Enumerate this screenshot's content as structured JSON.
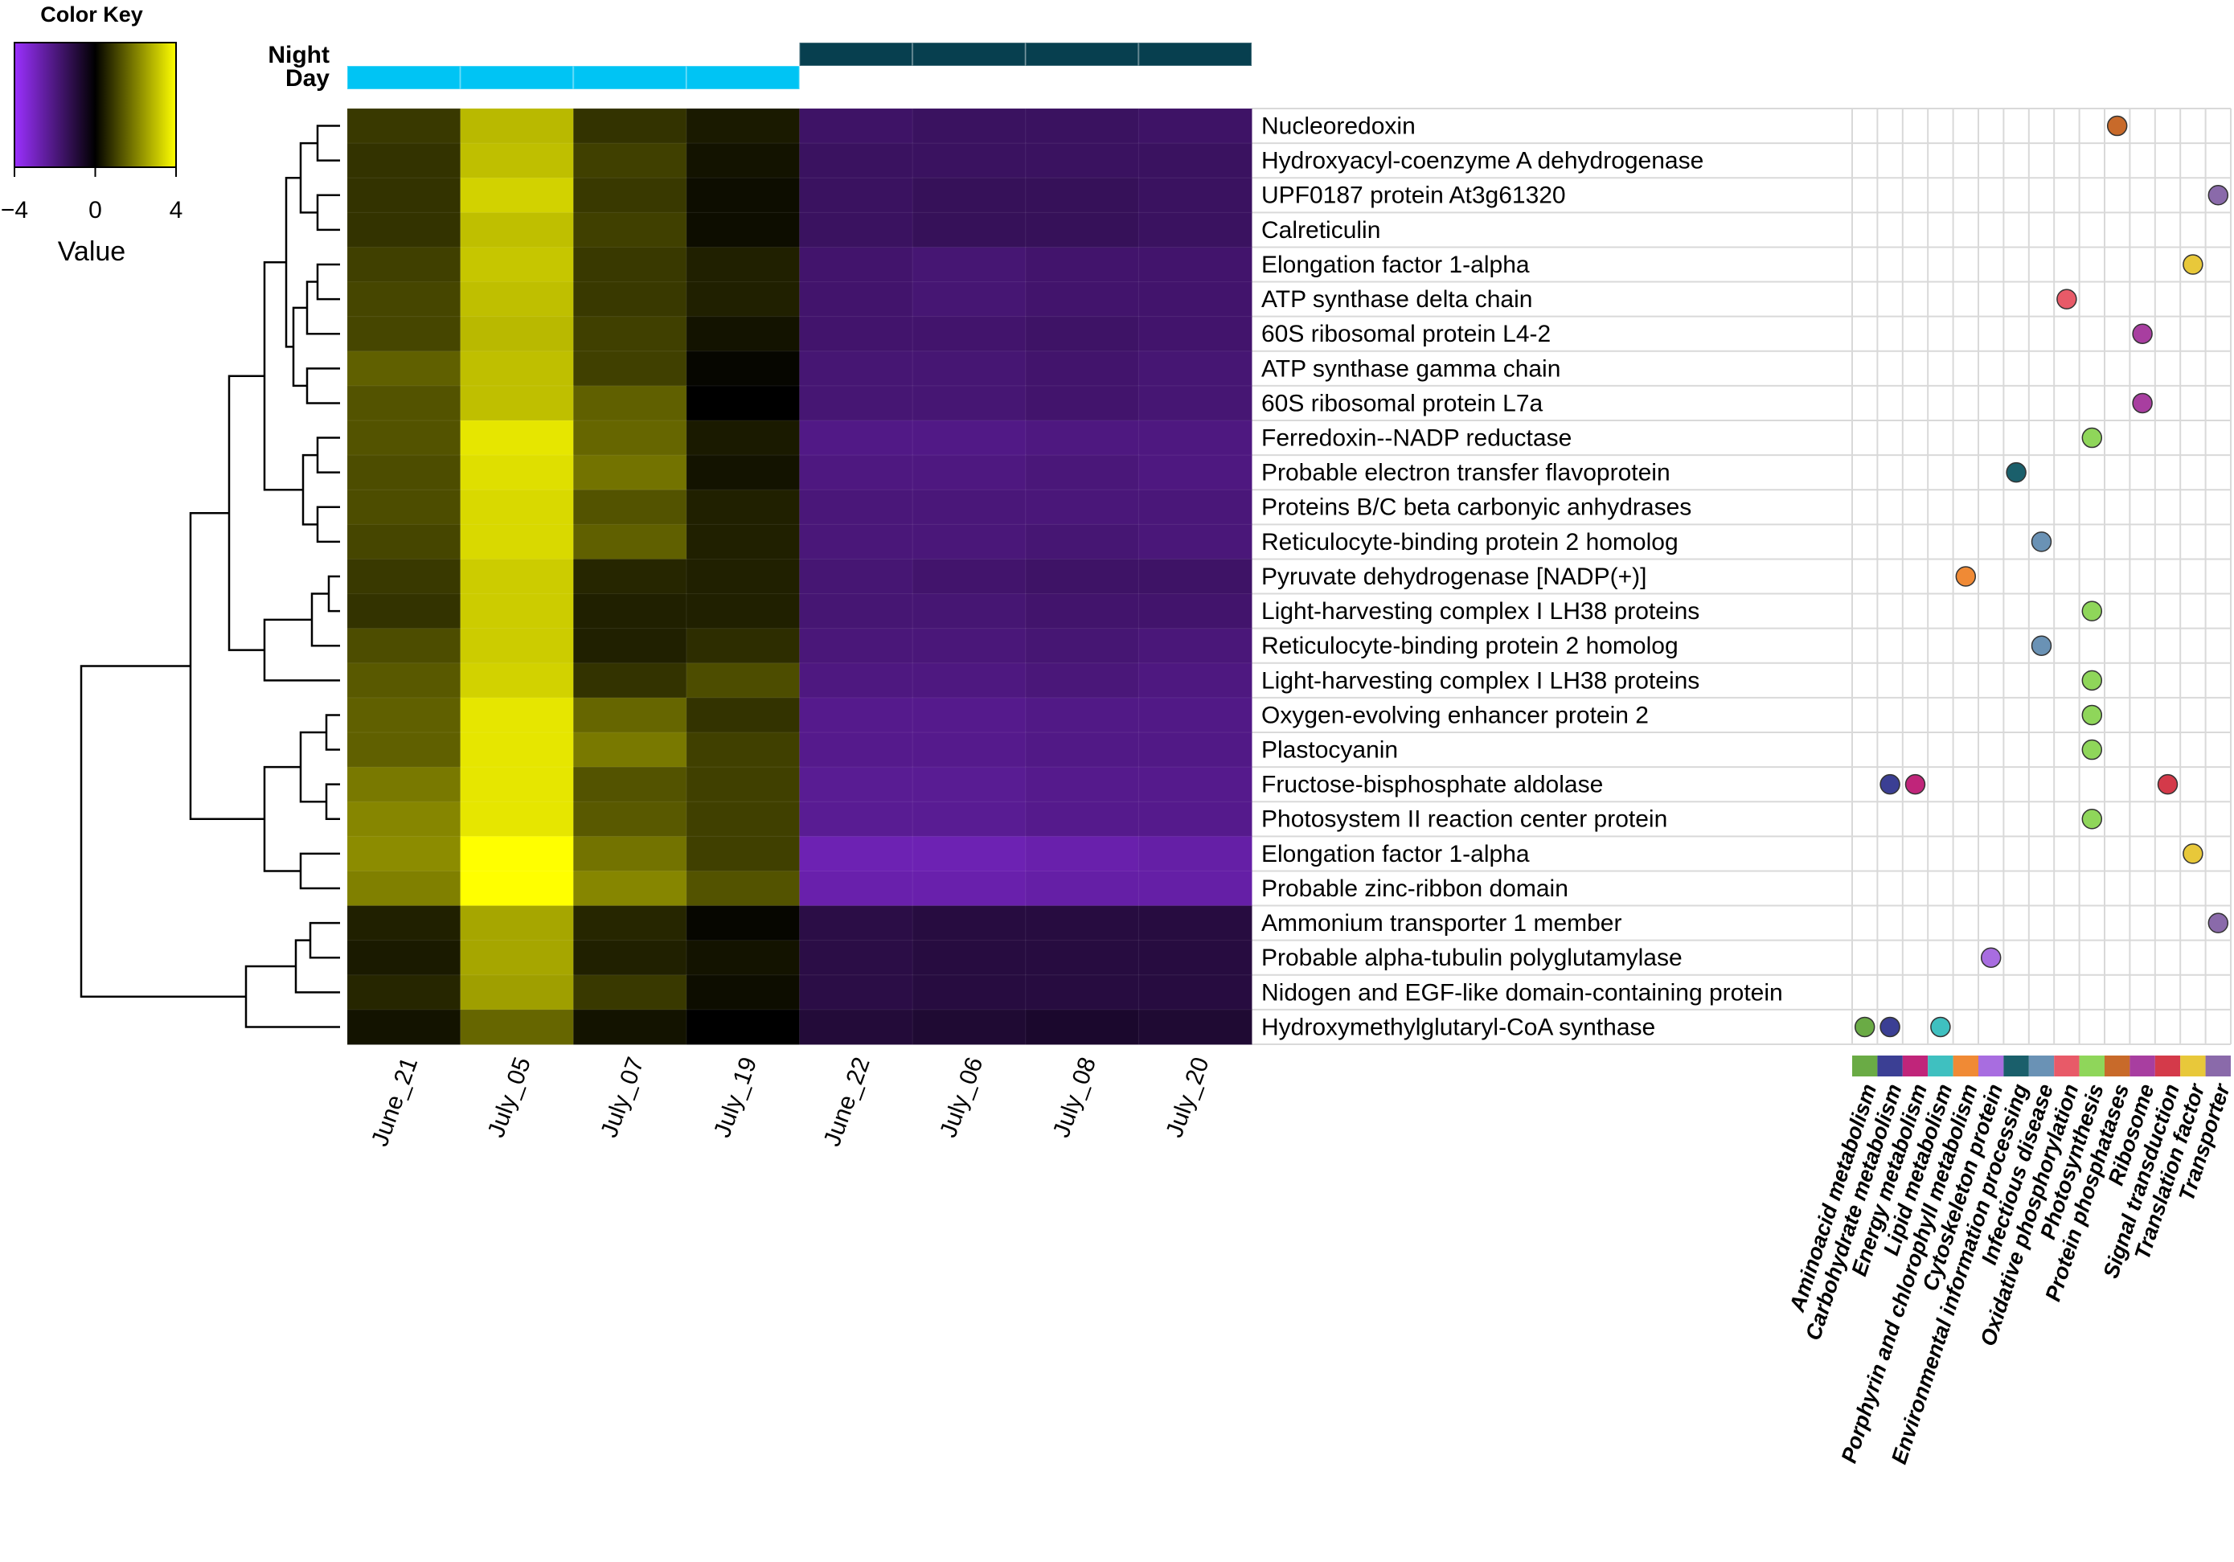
{
  "chart_data": {
    "type": "heatmap",
    "columns": [
      "June_21",
      "July_05",
      "July_07",
      "July_19",
      "June_22",
      "July_06",
      "July_08",
      "July_20"
    ],
    "column_groups": [
      "Day",
      "Day",
      "Day",
      "Day",
      "Night",
      "Night",
      "Night",
      "Night"
    ],
    "group_legend": [
      {
        "name": "Night",
        "color": "#073f4f"
      },
      {
        "name": "Day",
        "color": "#00c4f4"
      }
    ],
    "rows": [
      "Nucleoredoxin",
      "Hydroxyacyl-coenzyme A dehydrogenase",
      "UPF0187 protein At3g61320",
      "Calreticulin",
      "Elongation factor 1-alpha",
      "ATP synthase delta chain",
      "60S ribosomal protein L4-2",
      "ATP synthase gamma chain",
      "60S ribosomal protein L7a",
      "Ferredoxin--NADP reductase",
      "Probable electron transfer flavoprotein",
      "Proteins B/C beta carbonyic anhydrases",
      "Reticulocyte-binding protein 2 homolog",
      "Pyruvate dehydrogenase [NADP(+)]",
      "Light-harvesting complex I LH38 proteins",
      "Reticulocyte-binding protein 2 homolog",
      "Light-harvesting complex I LH38 proteins",
      "Oxygen-evolving enhancer protein 2",
      "Plastocyanin",
      "Fructose-bisphosphate aldolase",
      "Photosystem II reaction center protein",
      "Elongation factor 1-alpha",
      "Probable zinc-ribbon domain",
      "Ammonium transporter 1 member",
      "Probable alpha-tubulin polyglutamylase",
      "Nidogen and EGF-like domain-containing protein",
      "Hydroxymethylglutaryl-CoA synthase"
    ],
    "values": [
      [
        0.9,
        2.9,
        0.8,
        0.4,
        -1.6,
        -1.5,
        -1.5,
        -1.6
      ],
      [
        0.8,
        3.0,
        1.0,
        0.3,
        -1.5,
        -1.5,
        -1.5,
        -1.5
      ],
      [
        0.8,
        3.3,
        0.9,
        0.2,
        -1.5,
        -1.4,
        -1.4,
        -1.5
      ],
      [
        0.8,
        3.0,
        1.0,
        0.2,
        -1.5,
        -1.4,
        -1.4,
        -1.5
      ],
      [
        1.0,
        3.1,
        0.9,
        0.5,
        -1.7,
        -1.8,
        -1.7,
        -1.7
      ],
      [
        1.1,
        3.0,
        0.9,
        0.5,
        -1.7,
        -1.8,
        -1.7,
        -1.7
      ],
      [
        1.1,
        2.9,
        1.0,
        0.3,
        -1.7,
        -1.7,
        -1.6,
        -1.7
      ],
      [
        1.5,
        3.0,
        1.0,
        0.1,
        -1.8,
        -1.8,
        -1.7,
        -1.8
      ],
      [
        1.3,
        3.0,
        1.5,
        0.0,
        -1.8,
        -1.8,
        -1.7,
        -1.8
      ],
      [
        1.3,
        3.6,
        1.6,
        0.4,
        -2.1,
        -2.1,
        -2.0,
        -2.0
      ],
      [
        1.2,
        3.5,
        1.8,
        0.3,
        -2.0,
        -2.0,
        -1.9,
        -2.0
      ],
      [
        1.2,
        3.4,
        1.3,
        0.5,
        -1.9,
        -1.9,
        -1.9,
        -1.9
      ],
      [
        1.1,
        3.4,
        1.5,
        0.5,
        -1.9,
        -1.9,
        -1.8,
        -1.9
      ],
      [
        0.9,
        3.2,
        0.6,
        0.5,
        -1.8,
        -1.7,
        -1.6,
        -1.6
      ],
      [
        0.8,
        3.2,
        0.5,
        0.5,
        -1.8,
        -1.8,
        -1.7,
        -1.7
      ],
      [
        1.2,
        3.2,
        0.5,
        0.7,
        -1.9,
        -1.9,
        -1.8,
        -1.9
      ],
      [
        1.4,
        3.3,
        0.8,
        1.2,
        -2.0,
        -2.0,
        -1.9,
        -2.0
      ],
      [
        1.5,
        3.6,
        1.6,
        0.8,
        -2.2,
        -2.2,
        -2.1,
        -2.1
      ],
      [
        1.5,
        3.6,
        1.9,
        1.0,
        -2.2,
        -2.2,
        -2.1,
        -2.1
      ],
      [
        1.9,
        3.6,
        1.3,
        1.0,
        -2.3,
        -2.3,
        -2.2,
        -2.2
      ],
      [
        2.1,
        3.6,
        1.4,
        1.0,
        -2.3,
        -2.3,
        -2.2,
        -2.2
      ],
      [
        2.2,
        4.0,
        1.8,
        1.0,
        -2.8,
        -2.8,
        -2.7,
        -2.6
      ],
      [
        2.0,
        4.0,
        2.1,
        1.3,
        -2.7,
        -2.7,
        -2.6,
        -2.6
      ],
      [
        0.5,
        2.6,
        0.6,
        0.1,
        -1.1,
        -1.0,
        -1.0,
        -1.0
      ],
      [
        0.4,
        2.6,
        0.5,
        0.3,
        -1.1,
        -1.0,
        -1.0,
        -1.0
      ],
      [
        0.6,
        2.5,
        0.9,
        0.2,
        -1.1,
        -1.0,
        -1.0,
        -1.0
      ],
      [
        0.3,
        1.6,
        0.3,
        0.0,
        -0.9,
        -0.8,
        -0.7,
        -0.8
      ]
    ],
    "color_key": {
      "title": "Color Key",
      "label": "Value",
      "range": [
        -4,
        4
      ],
      "ticks": [
        {
          "value": -4,
          "label": "−4"
        },
        0,
        4
      ],
      "low_color": "#9b30ff",
      "mid_color": "#000000",
      "high_color": "#ffff00"
    },
    "function_categories": [
      {
        "name": "Aminoacid metabolism",
        "color": "#6aab45"
      },
      {
        "name": "Carbohydrate metabolism",
        "color": "#3b3f94"
      },
      {
        "name": "Energy metabolism",
        "color": "#c0257a"
      },
      {
        "name": "Lipid metabolism",
        "color": "#3fc0c0"
      },
      {
        "name": "Porphyrin and chlorophyll metabolism",
        "color": "#f08a35"
      },
      {
        "name": "Cytoskeleton protein",
        "color": "#a86de0"
      },
      {
        "name": "Environmental information processing",
        "color": "#1a5f6b"
      },
      {
        "name": "Infectious disease",
        "color": "#6a92b5"
      },
      {
        "name": "Oxidative phosphorylation",
        "color": "#e85a68"
      },
      {
        "name": "Photosynthesis",
        "color": "#8fd65a"
      },
      {
        "name": "Protein phosphatases",
        "color": "#c86a2a"
      },
      {
        "name": "Ribosome",
        "color": "#a83ea0"
      },
      {
        "name": "Signal transduction",
        "color": "#d43a4a"
      },
      {
        "name": "Translation factor",
        "color": "#e8c83a"
      },
      {
        "name": "Transporter",
        "color": "#8a6aaa"
      }
    ],
    "functions": [
      [
        "Protein phosphatases"
      ],
      [],
      [
        "Transporter"
      ],
      [],
      [
        "Translation factor"
      ],
      [
        "Oxidative phosphorylation"
      ],
      [
        "Ribosome"
      ],
      [],
      [
        "Ribosome"
      ],
      [
        "Photosynthesis"
      ],
      [
        "Environmental information processing"
      ],
      [],
      [
        "Infectious disease"
      ],
      [
        "Porphyrin and chlorophyll metabolism"
      ],
      [
        "Photosynthesis"
      ],
      [
        "Infectious disease"
      ],
      [
        "Photosynthesis"
      ],
      [
        "Photosynthesis"
      ],
      [
        "Photosynthesis"
      ],
      [
        "Carbohydrate metabolism",
        "Energy metabolism",
        "Signal transduction"
      ],
      [
        "Photosynthesis"
      ],
      [
        "Translation factor"
      ],
      [],
      [
        "Transporter"
      ],
      [
        "Cytoskeleton protein"
      ],
      [],
      [
        "Aminoacid metabolism",
        "Carbohydrate metabolism",
        "Lipid metabolism"
      ]
    ]
  }
}
